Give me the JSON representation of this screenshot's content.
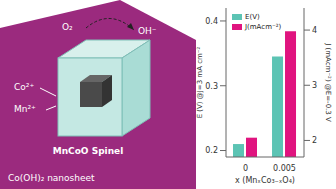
{
  "chart_data": {
    "type": "bar",
    "categories": [
      "0",
      "0.005"
    ],
    "x_label": "x (MnₓCo₃₋ₓO₄)",
    "y_label": "E (V) @J=3 mA cm⁻²",
    "y2_label": "J (mAcm⁻²) @E=-0.3 V",
    "ylim": [
      0.19,
      0.42
    ],
    "yticks": [
      0.2,
      0.3,
      0.4
    ],
    "y2lim": [
      1.7,
      4.4
    ],
    "y2ticks": [
      2,
      3,
      4
    ],
    "grid": false,
    "legend": "upper left",
    "series": [
      {
        "name": "E(V)",
        "color": "#5cc4b4",
        "values": [
          0.21,
          0.345
        ]
      },
      {
        "name": "J(mAcm⁻²)",
        "color": "#e0147f",
        "values": [
          2.05,
          3.98
        ],
        "axis": "y2"
      }
    ]
  },
  "diagram": {
    "labels": {
      "oxygen": "O₂",
      "hydroxide": "OH⁻",
      "cobalt": "Co²⁺",
      "manganese": "Mn²⁺",
      "particle": "MnCoO Spinel",
      "substrate": "Co(OH)₂ nanosheet"
    }
  }
}
